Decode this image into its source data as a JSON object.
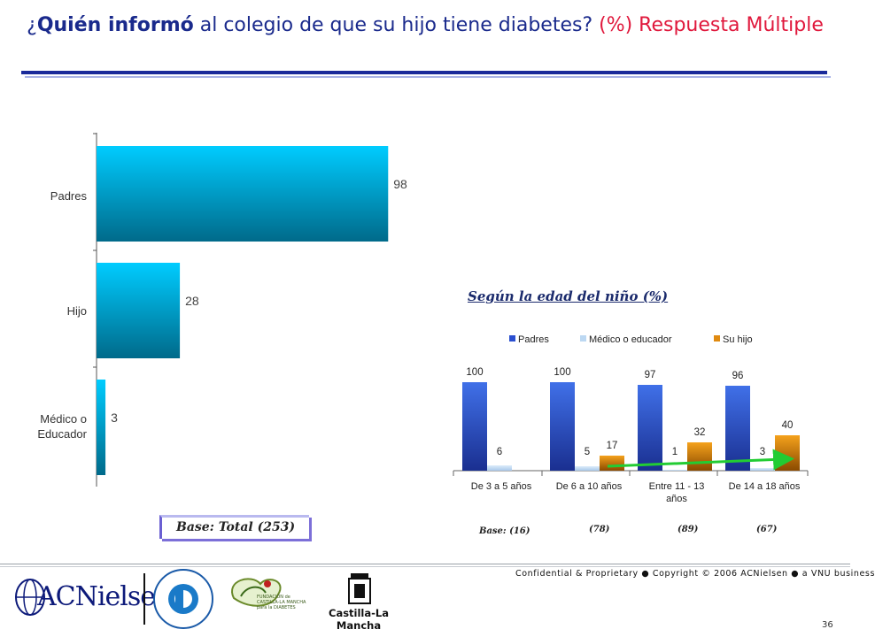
{
  "title": {
    "q_open": "¿",
    "q_highlight": "Quién informó",
    "q_rest": " al colegio de que su hijo tiene diabetes? ",
    "suffix": "(%) Respuesta Múltiple"
  },
  "chart_data": [
    {
      "type": "bar",
      "orientation": "horizontal",
      "categories": [
        "Padres",
        "Hijo",
        "Médico o Educador"
      ],
      "values": [
        98,
        28,
        3
      ],
      "xlim": [
        0,
        100
      ],
      "grid": false,
      "colors": {
        "top": "#00ccff",
        "bottom": "#006a8a"
      }
    },
    {
      "type": "bar",
      "title": "Según la edad del niño (%)",
      "categories": [
        "De 3 a 5 años",
        "De 6 a 10 años",
        "Entre 11 - 13 años",
        "De 14  a 18 años"
      ],
      "series": [
        {
          "name": "Padres",
          "values": [
            100,
            100,
            97,
            96
          ],
          "color": "#2a4fd0"
        },
        {
          "name": "Médico o educador",
          "values": [
            6,
            5,
            1,
            3
          ],
          "color": "#bcd8f2"
        },
        {
          "name": "Su hijo",
          "values": [
            null,
            17,
            32,
            40
          ],
          "color": "#e08a10"
        }
      ],
      "ylim": [
        0,
        100
      ],
      "legend": "top",
      "grid": false,
      "annotation": "trend arrow across Su hijo series"
    }
  ],
  "bases": {
    "total": "Base: Total (253)",
    "by_age": [
      "Base: (16)",
      "(78)",
      "(89)",
      "(67)"
    ]
  },
  "footer": {
    "confidential": "Confidential & Proprietary ● Copyright © 2006 ACNielsen ● a VNU business",
    "page": "36",
    "logo_acn": "ACNielsen",
    "logo_fundacion": "FUNDACION PARA LA DIABETES",
    "logo_fclm": "FUNDACIÓN de CASTILLA-LA MANCHA para la DIABETES",
    "logo_clm": "Castilla-La Mancha"
  }
}
